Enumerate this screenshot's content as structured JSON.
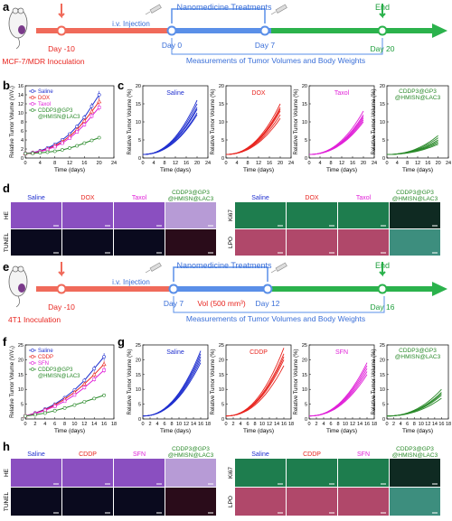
{
  "colors": {
    "saline": "#1f2fcf",
    "dox": "#e8251f",
    "taxol": "#e020d8",
    "cddp": "#e8251f",
    "sfn": "#e020d8",
    "combo": "#2a8a2a",
    "pre": "#f06a5a",
    "treat": "#5a8fe8",
    "end": "#2bb24c",
    "text_red": "#e8251f",
    "text_blue": "#3a6fd8",
    "text_green": "#1e9e3c"
  },
  "panel_labels": {
    "a": "a",
    "b": "b",
    "c": "c",
    "d": "d",
    "e": "e",
    "f": "f",
    "g": "g",
    "h": "h"
  },
  "timeline_top": {
    "inoculation": "MCF-7/MDR Inoculation",
    "day_start": "Day -10",
    "injection": "i.v. Injection",
    "treatments": "Nanomedicine Treatments",
    "day0": "Day 0",
    "day7": "Day 7",
    "day_end": "Day 20",
    "end": "End",
    "measure": "Measurements of Tumor Volumes and Body Weights"
  },
  "timeline_bottom": {
    "inoculation": "4T1 Inoculation",
    "day_start": "Day -10",
    "injection": "i.v. Injection",
    "treatments": "Nanomedicine Treatments",
    "day7": "Day 7",
    "vol": "Vol (500 mm³)",
    "day12": "Day 12",
    "day_end": "Day 16",
    "end": "End",
    "measure": "Measurements of Tumor Volumes and Body Weights"
  },
  "chart_data": [
    {
      "id": "b",
      "type": "line",
      "ylabel": "Relative Tumor Volume (V/V₀)",
      "xlabel": "Time (days)",
      "x": [
        0,
        2,
        4,
        6,
        8,
        10,
        12,
        14,
        16,
        18,
        20
      ],
      "xlim": [
        0,
        24
      ],
      "ylim": [
        0,
        16
      ],
      "xticks": [
        0,
        4,
        8,
        12,
        16,
        20,
        24
      ],
      "yticks": [
        0,
        2,
        4,
        6,
        8,
        10,
        12,
        14,
        16
      ],
      "series": [
        {
          "name": "Saline",
          "values": [
            1,
            1.2,
            1.6,
            2.2,
            3.0,
            4.0,
            5.3,
            7.0,
            9.0,
            11.5,
            14.0
          ]
        },
        {
          "name": "DOX",
          "values": [
            1,
            1.15,
            1.5,
            2.0,
            2.7,
            3.6,
            4.8,
            6.3,
            8.2,
            10.3,
            12.5
          ]
        },
        {
          "name": "Taxol",
          "values": [
            1,
            1.1,
            1.4,
            1.9,
            2.5,
            3.3,
            4.4,
            5.8,
            7.4,
            9.3,
            11.2
          ]
        },
        {
          "name": "CDDP3@GP3 @HMISN@LAC3",
          "values": [
            1,
            1.05,
            1.15,
            1.3,
            1.5,
            1.8,
            2.2,
            2.7,
            3.3,
            3.9,
            4.5
          ]
        }
      ]
    },
    {
      "id": "b2",
      "type": "line",
      "ylabel": "Relative Tumor Volume (%)",
      "xlabel": "Time (days)",
      "title": "Saline",
      "xlim": [
        0,
        24
      ],
      "ylim": [
        0,
        20
      ],
      "xticks": [
        0,
        4,
        8,
        12,
        16,
        20,
        24
      ],
      "yticks": [
        0,
        5,
        10,
        15,
        20
      ],
      "final": [
        16,
        15,
        14,
        13.5,
        12.5,
        12
      ]
    },
    {
      "id": "c2",
      "type": "line",
      "ylabel": "Relative Tumor Volume (%)",
      "xlabel": "Time (days)",
      "title": "DOX",
      "xlim": [
        0,
        24
      ],
      "ylim": [
        0,
        20
      ],
      "xticks": [
        0,
        4,
        8,
        12,
        16,
        20,
        24
      ],
      "yticks": [
        0,
        5,
        10,
        15,
        20
      ],
      "final": [
        15,
        14,
        13.5,
        13,
        12,
        11
      ]
    },
    {
      "id": "c3",
      "type": "line",
      "ylabel": "Relative Tumor Volume (%)",
      "xlabel": "Time (days)",
      "title": "Taxol",
      "xlim": [
        0,
        24
      ],
      "ylim": [
        0,
        20
      ],
      "xticks": [
        0,
        4,
        8,
        12,
        16,
        20,
        24
      ],
      "yticks": [
        0,
        5,
        10,
        15,
        20
      ],
      "final": [
        13,
        12,
        11.5,
        11,
        10.5,
        10
      ]
    },
    {
      "id": "c4",
      "type": "line",
      "ylabel": "Relative Tumor Volume (%)",
      "xlabel": "Time (days)",
      "title": "CDDP3@GP3 @HMISN@LAC3",
      "xlim": [
        0,
        24
      ],
      "ylim": [
        0,
        20
      ],
      "xticks": [
        0,
        4,
        8,
        12,
        16,
        20,
        24
      ],
      "yticks": [
        0,
        5,
        10,
        15,
        20
      ],
      "final": [
        6.2,
        5.6,
        5.0,
        4.6,
        4.2,
        3.8
      ]
    },
    {
      "id": "f",
      "type": "line",
      "ylabel": "Relative Tumor Volume (V/V₀)",
      "xlabel": "Time (days)",
      "x": [
        0,
        2,
        4,
        6,
        8,
        10,
        12,
        14,
        16
      ],
      "xlim": [
        0,
        18
      ],
      "ylim": [
        0,
        25
      ],
      "xticks": [
        0,
        2,
        4,
        6,
        8,
        10,
        12,
        14,
        16,
        18
      ],
      "yticks": [
        0,
        5,
        10,
        15,
        20,
        25
      ],
      "series": [
        {
          "name": "Saline",
          "values": [
            1,
            2.0,
            3.3,
            5.0,
            7.2,
            9.8,
            13.0,
            17.0,
            21.0
          ]
        },
        {
          "name": "CDDP",
          "values": [
            1,
            1.9,
            3.1,
            4.7,
            6.7,
            9.0,
            11.8,
            15.0,
            18.5
          ]
        },
        {
          "name": "SFN",
          "values": [
            1,
            1.8,
            2.9,
            4.3,
            6.0,
            8.1,
            10.6,
            13.4,
            16.5
          ]
        },
        {
          "name": "CDDP3@GP3 @HMISN@LAC3",
          "values": [
            1,
            1.4,
            2.0,
            2.8,
            3.7,
            4.7,
            5.8,
            6.9,
            8.0
          ]
        }
      ]
    },
    {
      "id": "g1",
      "type": "line",
      "ylabel": "Relative Tumor Volume (%)",
      "xlabel": "Time (days)",
      "title": "Saline",
      "xlim": [
        0,
        18
      ],
      "ylim": [
        0,
        25
      ],
      "xticks": [
        0,
        2,
        4,
        6,
        8,
        10,
        12,
        14,
        16,
        18
      ],
      "yticks": [
        0,
        5,
        10,
        15,
        20,
        25
      ],
      "final": [
        23,
        22,
        21,
        20,
        19
      ]
    },
    {
      "id": "g2",
      "type": "line",
      "ylabel": "Relative Tumor Volume (%)",
      "xlabel": "Time (days)",
      "title": "CDDP",
      "xlim": [
        0,
        18
      ],
      "ylim": [
        0,
        25
      ],
      "xticks": [
        0,
        2,
        4,
        6,
        8,
        10,
        12,
        14,
        16,
        18
      ],
      "yticks": [
        0,
        5,
        10,
        15,
        20,
        25
      ],
      "final": [
        24,
        22,
        21,
        20,
        18
      ]
    },
    {
      "id": "g3",
      "type": "line",
      "ylabel": "Relative Tumor Volume (%)",
      "xlabel": "Time (days)",
      "title": "SFN",
      "xlim": [
        0,
        18
      ],
      "ylim": [
        0,
        25
      ],
      "xticks": [
        0,
        2,
        4,
        6,
        8,
        10,
        12,
        14,
        16,
        18
      ],
      "yticks": [
        0,
        5,
        10,
        15,
        20,
        25
      ],
      "final": [
        19,
        18,
        17,
        16,
        15
      ]
    },
    {
      "id": "g4",
      "type": "line",
      "ylabel": "Relative Tumor Volume (%)",
      "xlabel": "Time (days)",
      "title": "CDDP3@GP3 @HMISN@LAC3",
      "xlim": [
        0,
        18
      ],
      "ylim": [
        0,
        25
      ],
      "xticks": [
        0,
        2,
        4,
        6,
        8,
        10,
        12,
        14,
        16,
        18
      ],
      "yticks": [
        0,
        5,
        10,
        15,
        20,
        25
      ],
      "final": [
        10,
        9,
        8.5,
        8,
        7
      ]
    }
  ],
  "micro_d": {
    "cols_left": [
      "Saline",
      "DOX",
      "Taxol",
      "CDDP3@GP3\n@HMISN@LAC3"
    ],
    "cols_right": [
      "Saline",
      "DOX",
      "Taxol",
      "CDDP3@GP3\n@HMISN@LAC3"
    ],
    "rows_left": [
      "HE",
      "TUNEL"
    ],
    "rows_right": [
      "Ki67",
      "LPO"
    ]
  },
  "micro_h": {
    "cols_left": [
      "Saline",
      "CDDP",
      "SFN",
      "CDDP3@GP3\n@HMISN@LAC3"
    ],
    "cols_right": [
      "Saline",
      "CDDP",
      "SFN",
      "CDDP3@GP3\n@HMISN@LAC3"
    ],
    "rows_left": [
      "HE",
      "TUNEL"
    ],
    "rows_right": [
      "Ki67",
      "LPO"
    ]
  }
}
